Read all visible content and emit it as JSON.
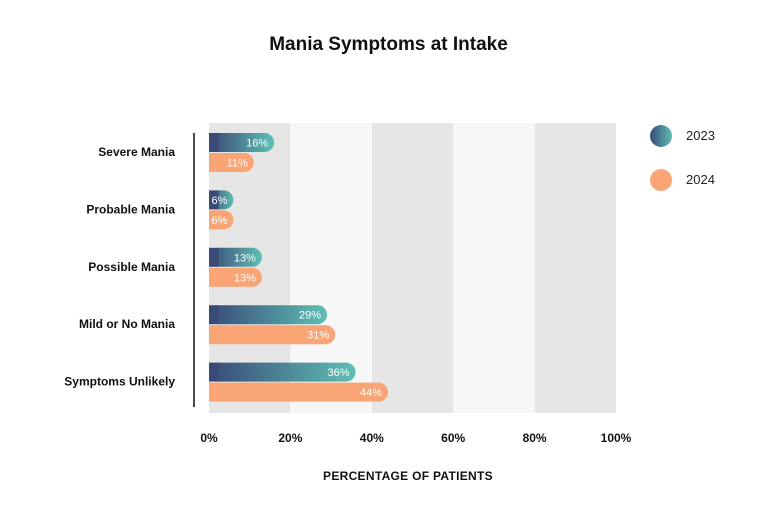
{
  "chart_data": {
    "type": "bar",
    "orientation": "horizontal",
    "title": "Mania Symptoms at Intake",
    "xlabel": "PERCENTAGE OF PATIENTS",
    "ylabel": "",
    "xlim": [
      0,
      100
    ],
    "x_ticks": [
      "0%",
      "20%",
      "40%",
      "60%",
      "80%",
      "100%"
    ],
    "value_format": "percent",
    "categories": [
      "Severe Mania",
      "Probable Mania",
      "Possible Mania",
      "Mild or No Mania",
      "Symptoms Unlikely"
    ],
    "series": [
      {
        "name": "2023",
        "values": [
          16,
          6,
          13,
          29,
          36
        ],
        "color": "#3a4a78",
        "color_end": "#5fbfb4"
      },
      {
        "name": "2024",
        "values": [
          11,
          6,
          13,
          31,
          44
        ],
        "color": "#f9a474"
      }
    ],
    "legend_position": "right",
    "grid": true,
    "background_bands": [
      "#e6e6e6",
      "#f7f7f7"
    ]
  }
}
